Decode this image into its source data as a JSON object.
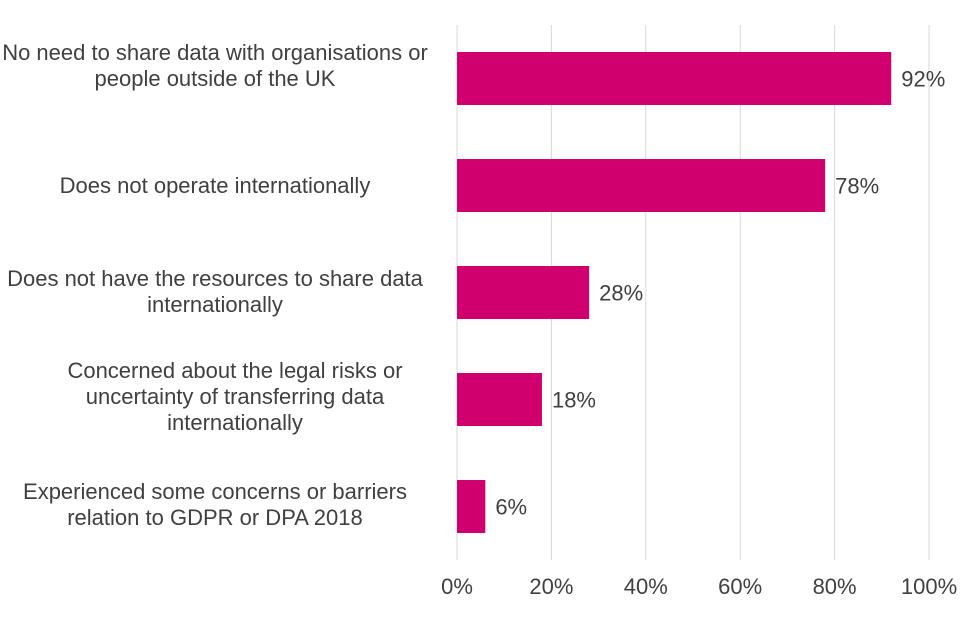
{
  "chart_data": {
    "type": "bar",
    "orientation": "horizontal",
    "categories": [
      "No need to share data with organisations or people outside of the UK",
      "Does not operate internationally",
      "Does not have the resources to share data internationally",
      "Concerned about the legal risks or uncertainty of transferring data internationally",
      "Experienced some concerns or barriers relation to GDPR or DPA 2018"
    ],
    "values": [
      92,
      78,
      28,
      18,
      6
    ],
    "data_labels": [
      "92%",
      "78%",
      "28%",
      "18%",
      "6%"
    ],
    "xlim": [
      0,
      100
    ],
    "x_ticks": [
      "0%",
      "20%",
      "40%",
      "60%",
      "80%",
      "100%"
    ],
    "grid": true,
    "bar_color": "#D0006F",
    "gridline_color": "#D9D9D9",
    "text_color": "#404040"
  }
}
